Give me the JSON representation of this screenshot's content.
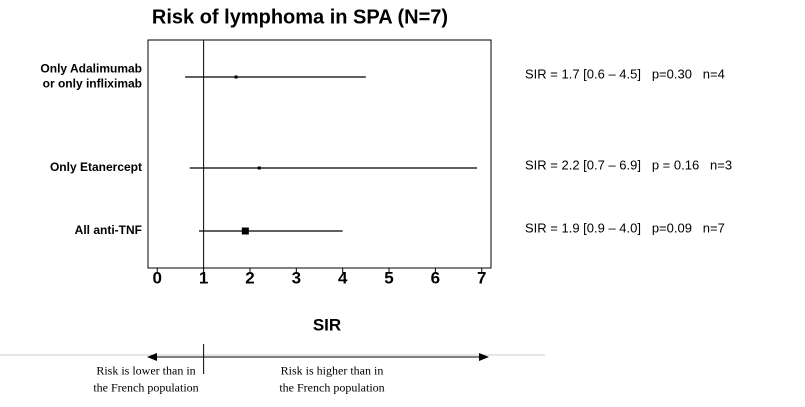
{
  "chart_data": {
    "type": "forest",
    "title": "Risk of lymphoma in SPA (N=7)",
    "categories": [
      "Only Adalimumab\nor only infliximab",
      "Only Etanercept",
      "All anti-TNF"
    ],
    "values": [
      1.7,
      2.2,
      1.9
    ],
    "lower": [
      0.6,
      0.7,
      0.9
    ],
    "upper": [
      4.5,
      6.9,
      4.0
    ],
    "annotations": [
      "SIR = 1.7 [0.6 – 4.5]   p=0.30   n=4",
      "SIR = 2.2 [0.7 – 6.9]   p = 0.16   n=3",
      "SIR = 1.9 [0.9 – 4.0]   p=0.09   n=7"
    ],
    "xlabel": "SIR",
    "xlim": [
      -0.2,
      7.2
    ],
    "xticks": [
      0,
      1,
      2,
      3,
      4,
      5,
      6,
      7
    ],
    "reference_line": 1,
    "left_note": "Risk is lower than in\nthe French population",
    "right_note": "Risk is higher than in\nthe French population",
    "color": "#000000"
  }
}
